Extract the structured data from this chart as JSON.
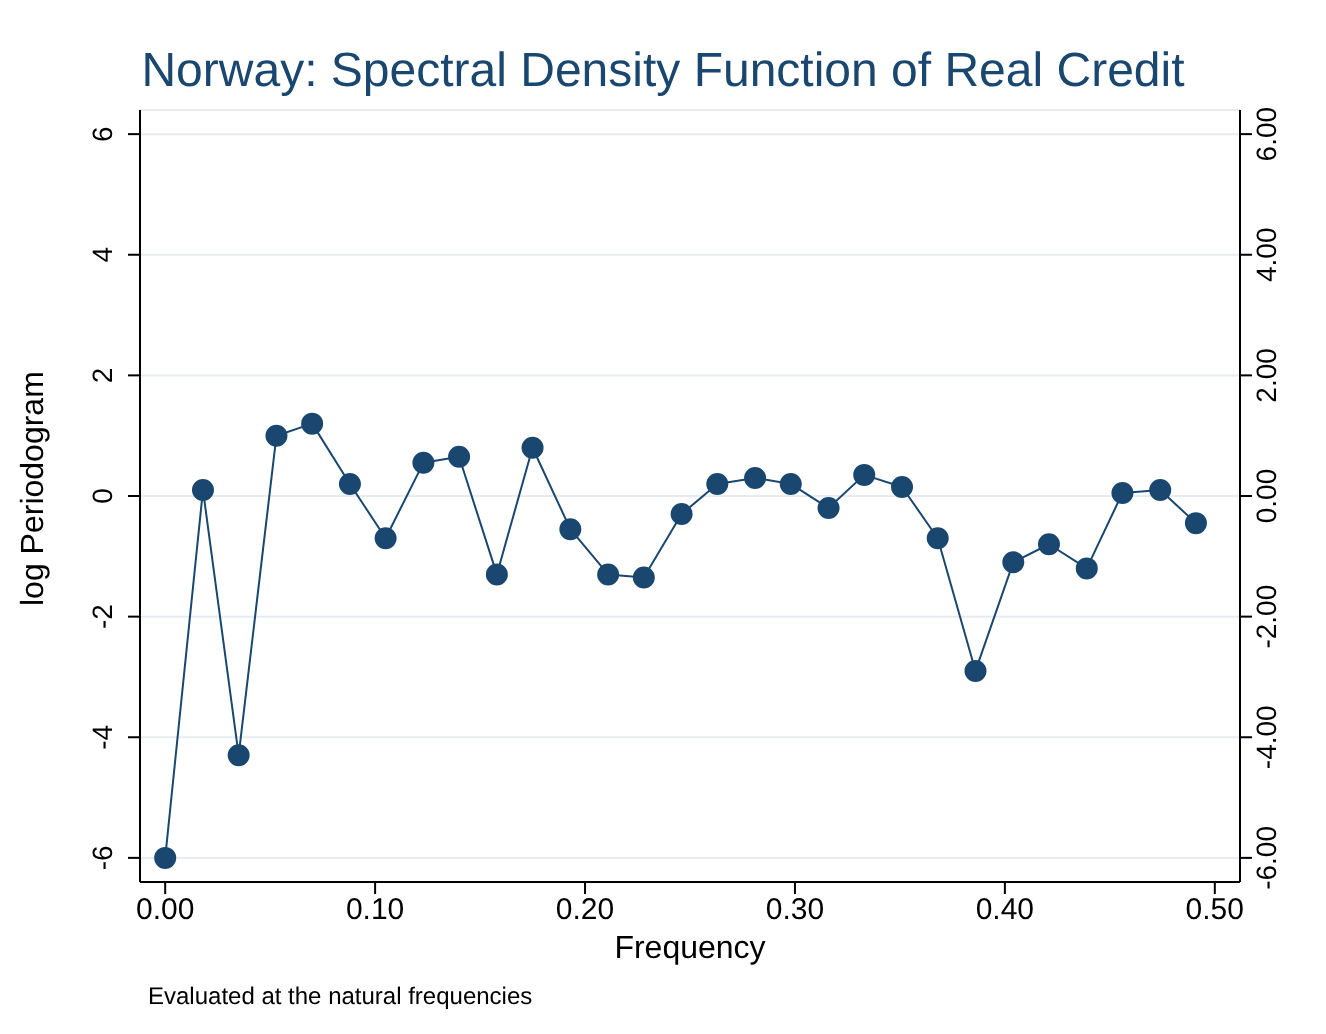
{
  "chart_data": {
    "type": "line",
    "title": "Norway: Spectral Density Function of Real Credit",
    "xlabel": "Frequency",
    "ylabel": "log Periodogram",
    "annotations": [
      "Evaluated at the natural frequencies"
    ],
    "x": [
      0,
      0.018,
      0.035,
      0.053,
      0.07,
      0.088,
      0.105,
      0.123,
      0.14,
      0.158,
      0.175,
      0.193,
      0.211,
      0.228,
      0.246,
      0.263,
      0.281,
      0.298,
      0.316,
      0.333,
      0.351,
      0.368,
      0.386,
      0.404,
      0.421,
      0.439,
      0.456,
      0.474,
      0.491
    ],
    "series": [
      {
        "color": "#1a476f",
        "values": [
          -6.0,
          0.1,
          -4.3,
          1.0,
          1.2,
          0.2,
          -0.7,
          0.55,
          0.65,
          -1.3,
          0.8,
          -0.55,
          -1.3,
          -1.35,
          -0.3,
          0.2,
          0.3,
          0.2,
          -0.2,
          0.35,
          0.15,
          -0.7,
          -2.9,
          -1.1,
          -0.8,
          -1.2,
          0.05,
          0.1,
          -0.45
        ]
      }
    ],
    "xlim": [
      -0.012,
      0.512
    ],
    "xticks": [
      {
        "value": 0,
        "label": "0.00"
      },
      {
        "value": 0.1,
        "label": "0.10"
      },
      {
        "value": 0.2,
        "label": "0.20"
      },
      {
        "value": 0.3,
        "label": "0.30"
      },
      {
        "value": 0.4,
        "label": "0.40"
      },
      {
        "value": 0.5,
        "label": "0.50"
      }
    ],
    "ylim": [
      -6.4,
      6.4
    ],
    "yticks": [
      -6,
      -4,
      -2,
      0,
      2,
      4,
      6
    ],
    "y2lim": [
      -6.4,
      6.4
    ],
    "y2ticks": [
      {
        "value": -6,
        "label": "-6.00"
      },
      {
        "value": -4,
        "label": "-4.00"
      },
      {
        "value": -2,
        "label": "-2.00"
      },
      {
        "value": 0,
        "label": "0.00"
      },
      {
        "value": 2,
        "label": "2.00"
      },
      {
        "value": 4,
        "label": "4.00"
      },
      {
        "value": 6,
        "label": "6.00"
      }
    ],
    "grid": "y",
    "marker": "circle",
    "line_style": "solid"
  }
}
